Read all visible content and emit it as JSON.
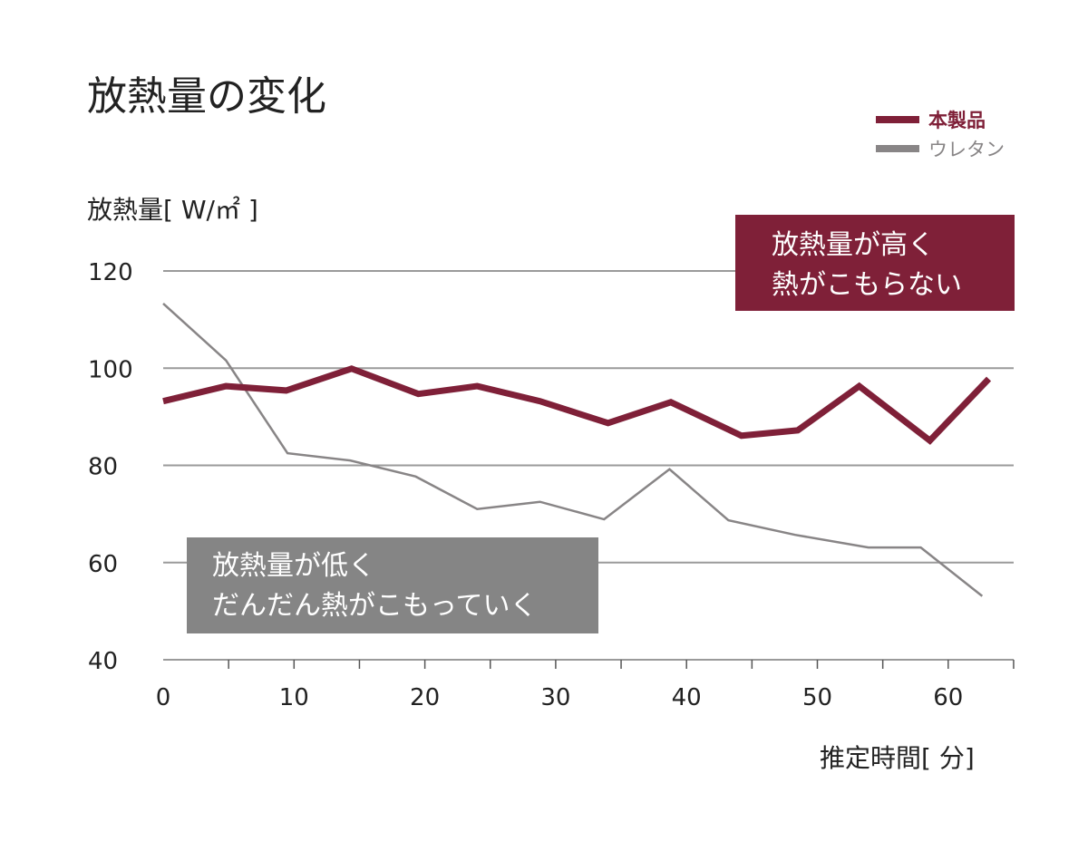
{
  "colors": {
    "product": "#7f2038",
    "urethane": "#888586",
    "grid": "#9a9a9a",
    "low_box": "#858585"
  },
  "chart_data": {
    "type": "line",
    "title": "放熱量の変化",
    "xlabel": "推定時間[ 分]",
    "ylabel": "放熱量[ W/㎡ ]",
    "xlim": [
      0,
      65
    ],
    "ylim": [
      40,
      120
    ],
    "xticks": [
      0,
      10,
      20,
      30,
      40,
      50,
      60
    ],
    "yticks": [
      40,
      60,
      80,
      100,
      120
    ],
    "grid": "horizontal",
    "legend": "top-right",
    "series": [
      {
        "name": "本製品",
        "x": [
          0,
          4.8,
          9.4,
          14.4,
          19.5,
          24,
          28.8,
          34,
          38.8,
          44.2,
          48.5,
          53.2,
          58.6,
          63.1
        ],
        "y": [
          93.2,
          96.3,
          95.4,
          99.9,
          94.7,
          96.3,
          93.2,
          88.7,
          93,
          86.1,
          87.2,
          96.3,
          85.1,
          97.8
        ]
      },
      {
        "name": "ウレタン",
        "x": [
          0,
          4.8,
          9.5,
          14.3,
          19.3,
          24,
          28.8,
          33.7,
          38.7,
          43.2,
          48.3,
          53.9,
          57.9,
          62.6
        ],
        "y": [
          113.3,
          101.6,
          82.5,
          81,
          77.7,
          71,
          72.5,
          68.9,
          79.2,
          68.7,
          65.7,
          63.1,
          63.1,
          53.1
        ]
      }
    ],
    "annotations": [
      {
        "text": [
          "放熱量が高く",
          "熱がこもらない"
        ]
      },
      {
        "text": [
          "放熱量が低く",
          "だんだん熱がこもっていく"
        ]
      }
    ]
  }
}
